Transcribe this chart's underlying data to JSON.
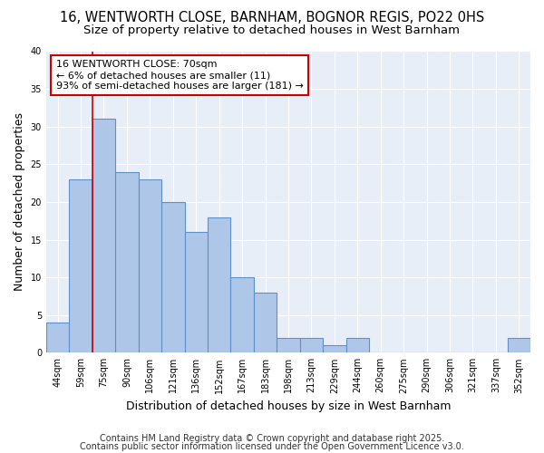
{
  "title_line1": "16, WENTWORTH CLOSE, BARNHAM, BOGNOR REGIS, PO22 0HS",
  "title_line2": "Size of property relative to detached houses in West Barnham",
  "xlabel": "Distribution of detached houses by size in West Barnham",
  "ylabel": "Number of detached properties",
  "categories": [
    "44sqm",
    "59sqm",
    "75sqm",
    "90sqm",
    "106sqm",
    "121sqm",
    "136sqm",
    "152sqm",
    "167sqm",
    "183sqm",
    "198sqm",
    "213sqm",
    "229sqm",
    "244sqm",
    "260sqm",
    "275sqm",
    "290sqm",
    "306sqm",
    "321sqm",
    "337sqm",
    "352sqm"
  ],
  "values": [
    4,
    23,
    31,
    24,
    23,
    20,
    16,
    18,
    10,
    8,
    2,
    2,
    1,
    2,
    0,
    0,
    0,
    0,
    0,
    0,
    2
  ],
  "bar_color": "#aec6e8",
  "bar_edge_color": "#6090c8",
  "bar_linewidth": 0.8,
  "vline_x_index": 2,
  "vline_color": "#cc0000",
  "vline_linewidth": 1.2,
  "annotation_text": "16 WENTWORTH CLOSE: 70sqm\n← 6% of detached houses are smaller (11)\n93% of semi-detached houses are larger (181) →",
  "annotation_box_color": "#ffffff",
  "annotation_box_edge": "#cc0000",
  "ylim": [
    0,
    40
  ],
  "yticks": [
    0,
    5,
    10,
    15,
    20,
    25,
    30,
    35,
    40
  ],
  "bg_color": "#e8eef8",
  "grid_color": "#ffffff",
  "footer_line1": "Contains HM Land Registry data © Crown copyright and database right 2025.",
  "footer_line2": "Contains public sector information licensed under the Open Government Licence v3.0.",
  "title_fontsize": 10.5,
  "subtitle_fontsize": 9.5,
  "axis_label_fontsize": 9,
  "tick_fontsize": 7,
  "annotation_fontsize": 8,
  "footer_fontsize": 7
}
